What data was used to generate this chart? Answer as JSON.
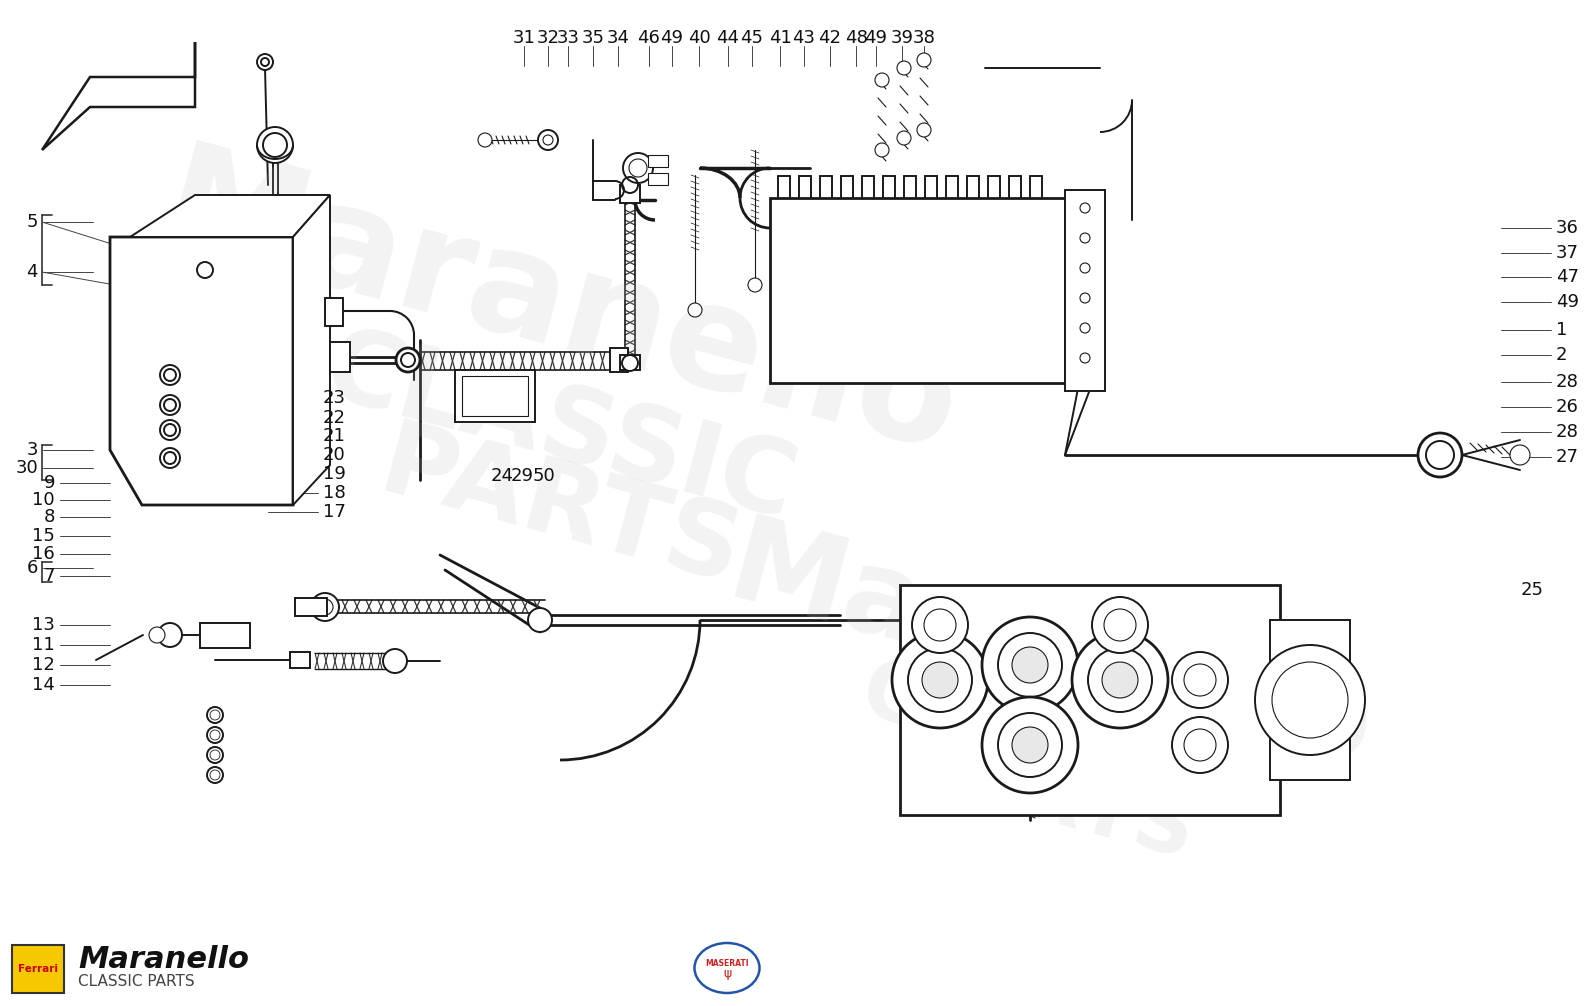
{
  "page_bg": "#FFFFFF",
  "lc": "#1A1A1A",
  "watermark_color": "#CCCCCC",
  "top_labels": [
    [
      "31",
      524,
      38
    ],
    [
      "32",
      548,
      38
    ],
    [
      "33",
      568,
      38
    ],
    [
      "35",
      593,
      38
    ],
    [
      "34",
      618,
      38
    ],
    [
      "46",
      649,
      38
    ],
    [
      "49",
      672,
      38
    ],
    [
      "40",
      699,
      38
    ],
    [
      "44",
      728,
      38
    ],
    [
      "45",
      752,
      38
    ],
    [
      "41",
      780,
      38
    ],
    [
      "43",
      804,
      38
    ],
    [
      "42",
      830,
      38
    ],
    [
      "48",
      856,
      38
    ],
    [
      "49",
      876,
      38
    ],
    [
      "39",
      902,
      38
    ],
    [
      "38",
      924,
      38
    ]
  ],
  "right_labels": [
    [
      "36",
      1556,
      228
    ],
    [
      "37",
      1556,
      253
    ],
    [
      "47",
      1556,
      277
    ],
    [
      "49",
      1556,
      302
    ],
    [
      "1",
      1556,
      330
    ],
    [
      "2",
      1556,
      355
    ],
    [
      "28",
      1556,
      382
    ],
    [
      "26",
      1556,
      407
    ],
    [
      "28",
      1556,
      432
    ],
    [
      "27",
      1556,
      457
    ]
  ],
  "left_labels": [
    [
      "5",
      38,
      222
    ],
    [
      "4",
      38,
      272
    ],
    [
      "30",
      38,
      468
    ],
    [
      "3",
      38,
      450
    ],
    [
      "9",
      55,
      483
    ],
    [
      "10",
      55,
      500
    ],
    [
      "8",
      55,
      517
    ],
    [
      "15",
      55,
      536
    ],
    [
      "16",
      55,
      554
    ],
    [
      "6",
      38,
      568
    ],
    [
      "7",
      55,
      576
    ],
    [
      "13",
      55,
      625
    ],
    [
      "11",
      55,
      645
    ],
    [
      "12",
      55,
      665
    ],
    [
      "14",
      55,
      685
    ]
  ],
  "mid_labels": [
    [
      "23",
      323,
      398
    ],
    [
      "22",
      323,
      418
    ],
    [
      "21",
      323,
      436
    ],
    [
      "20",
      323,
      455
    ],
    [
      "19",
      323,
      474
    ],
    [
      "18",
      323,
      493
    ],
    [
      "17",
      323,
      512
    ]
  ],
  "misc_labels": [
    [
      "24",
      491,
      476
    ],
    [
      "29",
      511,
      476
    ],
    [
      "50",
      533,
      476
    ],
    [
      "25",
      1521,
      590
    ]
  ],
  "font_size": 13
}
